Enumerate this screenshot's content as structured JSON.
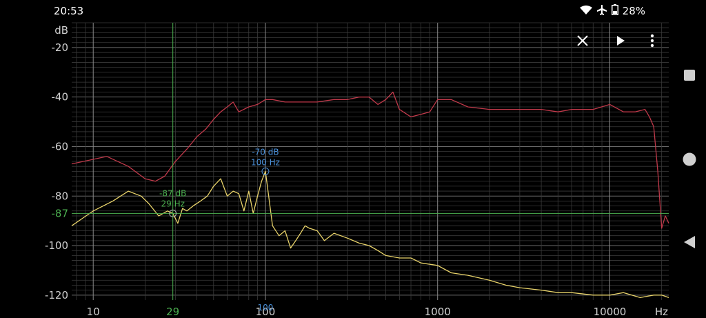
{
  "status": {
    "time": "20:53",
    "battery": "28%"
  },
  "toolbar": {
    "close_icon": "close-icon",
    "play_icon": "play-icon",
    "menu_icon": "more-vert-icon"
  },
  "nav": {
    "recents_icon": "square-icon",
    "home_icon": "circle-icon",
    "back_icon": "triangle-back-icon"
  },
  "colors": {
    "background": "#000000",
    "grid": "#5a5a5a",
    "red_trace": "#c0394a",
    "yellow_trace": "#e8d36a",
    "cursor_green": "#4caf50",
    "peak_blue": "#4a90d9"
  },
  "chart_data": {
    "type": "line",
    "xscale": "log",
    "xlim": [
      7.5,
      22000
    ],
    "ylim": [
      -122,
      -10
    ],
    "yunit_label": "dB",
    "xunit_label": "Hz",
    "yticks": [
      {
        "value": -20,
        "label": "-20"
      },
      {
        "value": -40,
        "label": "-40"
      },
      {
        "value": -60,
        "label": "-60"
      },
      {
        "value": -80,
        "label": "-80"
      },
      {
        "value": -100,
        "label": "-100"
      },
      {
        "value": -120,
        "label": "-120"
      }
    ],
    "xticks": [
      {
        "value": 10,
        "label": "10"
      },
      {
        "value": 100,
        "label": "100"
      },
      {
        "value": 1000,
        "label": "1000"
      },
      {
        "value": 10000,
        "label": "10000"
      }
    ],
    "cursor": {
      "x": 29,
      "x_label": "29",
      "y": -87,
      "y_label": "-87",
      "readout_db": "-87 dB",
      "readout_hz": "29 Hz"
    },
    "peak": {
      "x": 100,
      "y": -70,
      "readout_db": "-70 dB",
      "readout_hz": "100 Hz",
      "axis_label": "100"
    },
    "series": [
      {
        "color": "#c0394a",
        "x": [
          7.5,
          12,
          16,
          20,
          23,
          26,
          30,
          35,
          40,
          45,
          50,
          55,
          60,
          65,
          70,
          80,
          90,
          100,
          110,
          130,
          160,
          200,
          250,
          300,
          350,
          400,
          450,
          500,
          550,
          600,
          700,
          800,
          900,
          1000,
          1200,
          1500,
          2000,
          2500,
          3000,
          4000,
          5000,
          6000,
          8000,
          10000,
          12000,
          14000,
          16000,
          17000,
          18000,
          19000,
          20000,
          21000,
          22000
        ],
        "y": [
          -67,
          -64,
          -68,
          -73,
          -74,
          -72,
          -66,
          -61,
          -56,
          -53,
          -49,
          -46,
          -44,
          -42,
          -46,
          -44,
          -43,
          -41,
          -41,
          -42,
          -42,
          -42,
          -41,
          -41,
          -40,
          -40,
          -43,
          -41,
          -38,
          -45,
          -48,
          -47,
          -46,
          -41,
          -41,
          -44,
          -45,
          -45,
          -45,
          -45,
          -46,
          -45,
          -45,
          -43,
          -46,
          -46,
          -45,
          -48,
          -52,
          -70,
          -93,
          -88,
          -91
        ]
      },
      {
        "color": "#e8d36a",
        "x": [
          7.5,
          10,
          13,
          16,
          19,
          21,
          24,
          27,
          29,
          31,
          33,
          35,
          38,
          42,
          46,
          50,
          55,
          60,
          65,
          70,
          75,
          80,
          85,
          90,
          95,
          100,
          110,
          120,
          130,
          140,
          150,
          160,
          170,
          180,
          200,
          220,
          250,
          300,
          350,
          400,
          450,
          500,
          600,
          700,
          800,
          1000,
          1200,
          1500,
          2000,
          2500,
          3000,
          4000,
          5000,
          6000,
          8000,
          10000,
          12000,
          15000,
          18000,
          20000,
          22000
        ],
        "y": [
          -92,
          -86,
          -82,
          -78,
          -80,
          -83,
          -88,
          -86,
          -87,
          -91,
          -85,
          -86,
          -84,
          -82,
          -80,
          -76,
          -73,
          -80,
          -78,
          -79,
          -86,
          -78,
          -87,
          -80,
          -74,
          -70,
          -92,
          -96,
          -94,
          -101,
          -98,
          -95,
          -92,
          -93,
          -94,
          -98,
          -95,
          -97,
          -99,
          -100,
          -102,
          -104,
          -105,
          -105,
          -107,
          -108,
          -111,
          -112,
          -114,
          -116,
          -117,
          -118,
          -119,
          -119,
          -120,
          -120,
          -119,
          -121,
          -120,
          -120,
          -121
        ]
      }
    ]
  }
}
